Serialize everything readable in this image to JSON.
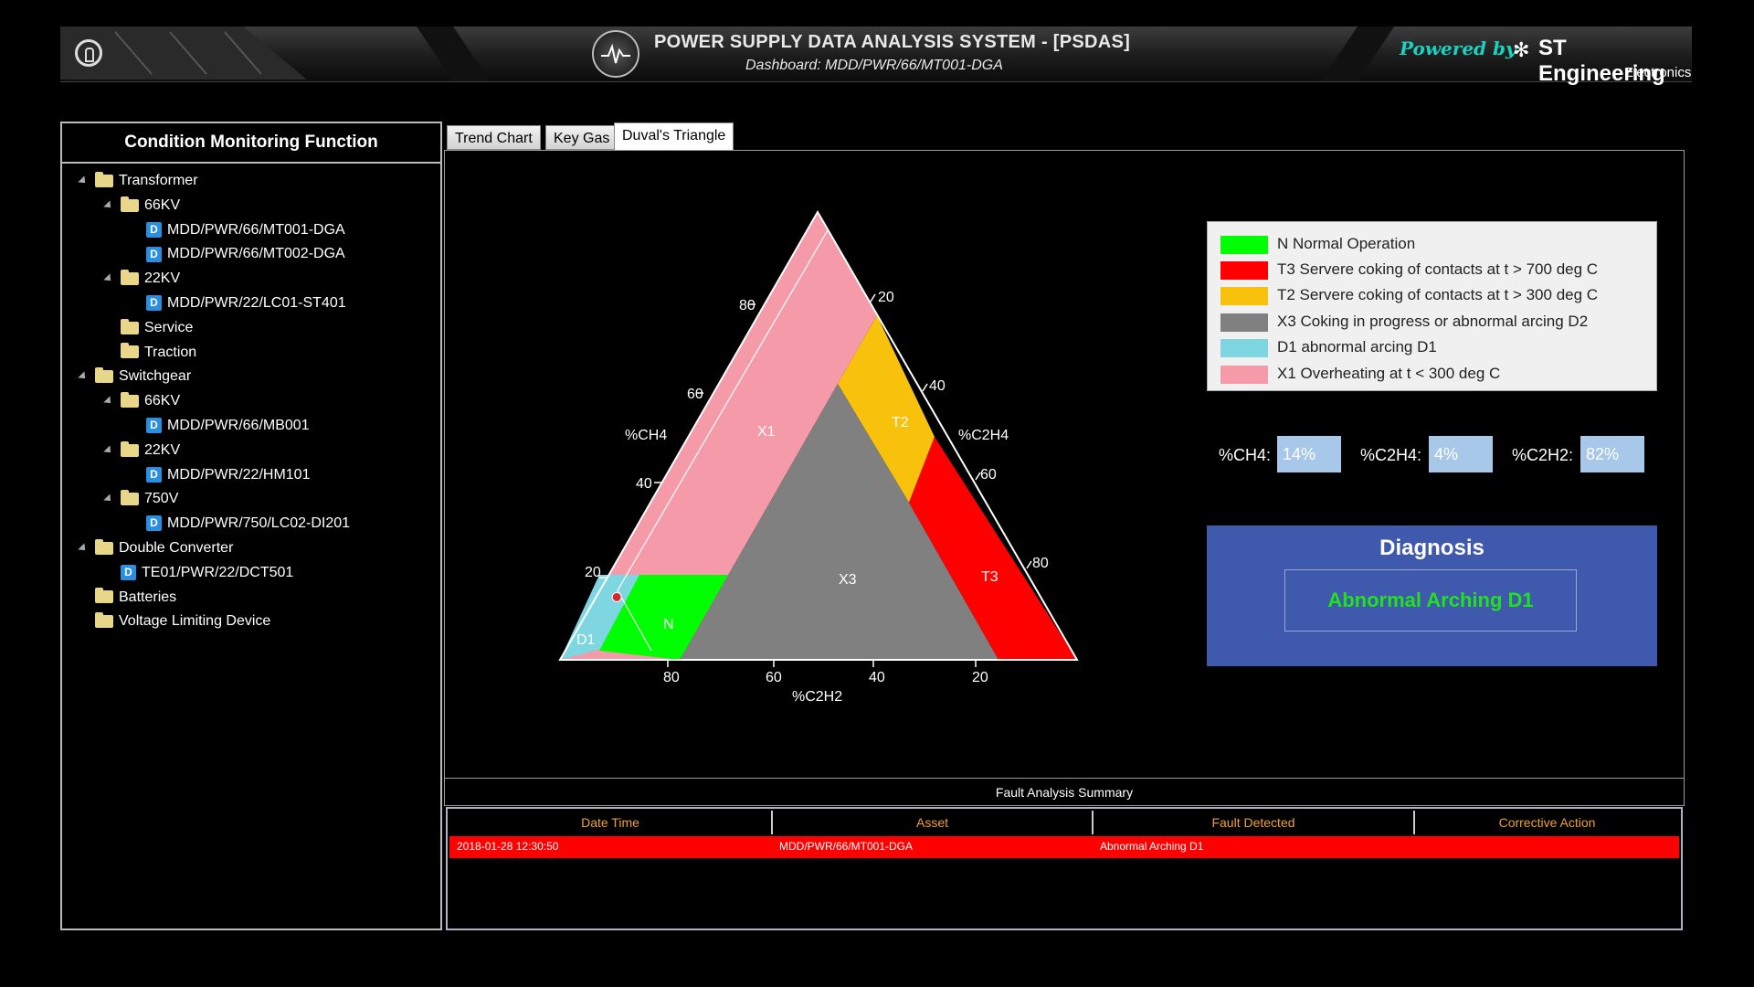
{
  "header": {
    "title": "POWER SUPPLY DATA ANALYSIS SYSTEM - [PSDAS]",
    "subtitle": "Dashboard: MDD/PWR/66/MT001-DGA",
    "powered_by": "Powered by",
    "brand": "ST Engineering",
    "brand_sub": "Electronics"
  },
  "sidebar": {
    "title": "Condition Monitoring Function",
    "items": [
      {
        "label": "Transformer",
        "type": "folder",
        "expanded": true
      },
      {
        "label": "66KV",
        "type": "folder",
        "expanded": true
      },
      {
        "label": "MDD/PWR/66/MT001-DGA",
        "type": "device"
      },
      {
        "label": "MDD/PWR/66/MT002-DGA",
        "type": "device"
      },
      {
        "label": "22KV",
        "type": "folder",
        "expanded": true
      },
      {
        "label": "MDD/PWR/22/LC01-ST401",
        "type": "device"
      },
      {
        "label": "Service",
        "type": "folder"
      },
      {
        "label": "Traction",
        "type": "folder"
      },
      {
        "label": "Switchgear",
        "type": "folder",
        "expanded": true
      },
      {
        "label": "66KV",
        "type": "folder",
        "expanded": true
      },
      {
        "label": "MDD/PWR/66/MB001",
        "type": "device"
      },
      {
        "label": "22KV",
        "type": "folder",
        "expanded": true
      },
      {
        "label": "MDD/PWR/22/HM101",
        "type": "device"
      },
      {
        "label": "750V",
        "type": "folder",
        "expanded": true
      },
      {
        "label": "MDD/PWR/750/LC02-DI201",
        "type": "device"
      },
      {
        "label": "Double Converter",
        "type": "folder",
        "expanded": true
      },
      {
        "label": "TE01/PWR/22/DCT501",
        "type": "device"
      },
      {
        "label": "Batteries",
        "type": "folder"
      },
      {
        "label": "Voltage Limiting Device",
        "type": "folder"
      }
    ]
  },
  "tabs": [
    {
      "label": "Trend Chart",
      "active": false
    },
    {
      "label": "Key Gas",
      "active": false
    },
    {
      "label": "Duval's Triangle",
      "active": true
    }
  ],
  "triangle": {
    "axis_ch4": "%CH4",
    "axis_c2h4": "%C2H4",
    "axis_c2h2": "%C2H2",
    "ticks": [
      "20",
      "40",
      "60",
      "80"
    ],
    "zones": {
      "x1": "X1",
      "t2": "T2",
      "t3": "T3",
      "x3": "X3",
      "n": "N",
      "d1": "D1"
    },
    "point": {
      "ch4": 14,
      "c2h4": 4,
      "c2h2": 82
    }
  },
  "legend": [
    {
      "label": "N Normal Operation",
      "color": "#00ff00"
    },
    {
      "label": "T3 Servere coking of contacts at t > 700 deg C",
      "color": "#ff0000"
    },
    {
      "label": "T2 Servere coking of contacts at t > 300 deg C",
      "color": "#f8c10c"
    },
    {
      "label": "X3 Coking in progress or abnormal arcing D2",
      "color": "#808080"
    },
    {
      "label": "D1 abnormal arcing D1",
      "color": "#7dd6e0"
    },
    {
      "label": "X1 Overheating at t < 300 deg C",
      "color": "#f59aa8"
    }
  ],
  "readings": {
    "ch4_label": "%CH4:",
    "ch4_value": "14%",
    "c2h4_label": "%C2H4:",
    "c2h4_value": "4%",
    "c2h2_label": "%C2H2:",
    "c2h2_value": "82%"
  },
  "diagnosis": {
    "title": "Diagnosis",
    "result": "Abnormal Arching D1"
  },
  "summary": {
    "title": "Fault Analysis Summary",
    "columns": [
      "Date Time",
      "Asset",
      "Fault Detected",
      "Corrective Action"
    ],
    "rows": [
      [
        "2018-01-28 12:30:50",
        "MDD/PWR/66/MT001-DGA",
        "Abnormal Arching D1",
        ""
      ]
    ]
  }
}
